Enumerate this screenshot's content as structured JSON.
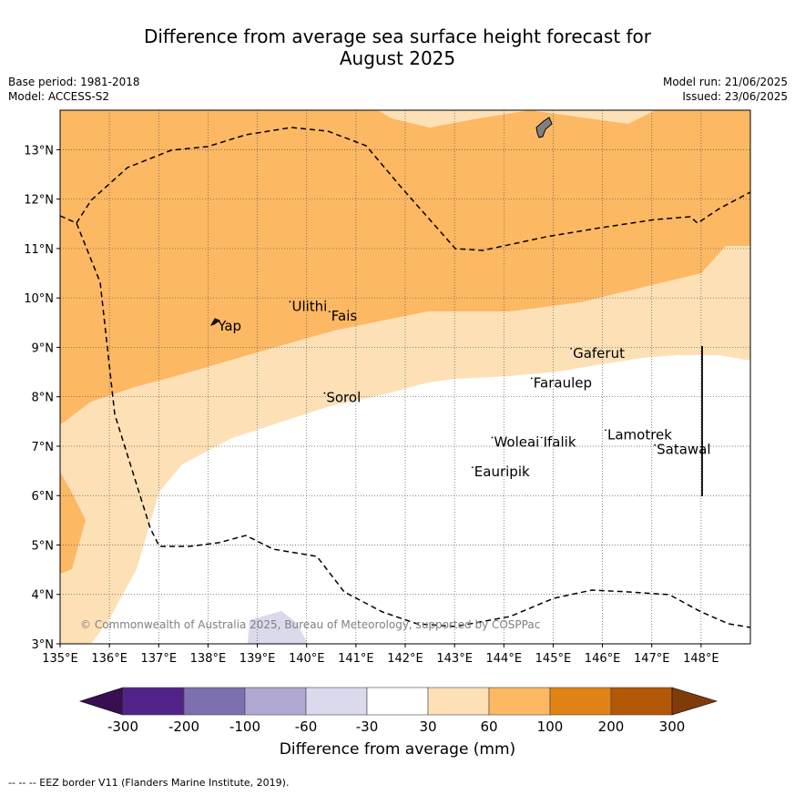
{
  "title_line1": "Difference from average sea surface height forecast for",
  "title_line2": "August 2025",
  "meta": {
    "base_period": "Base period: 1981-2018",
    "model": "Model: ACCESS-S2",
    "model_run": "Model run: 21/06/2025",
    "issued": "Issued: 23/06/2025"
  },
  "map": {
    "lon_range": [
      135,
      149
    ],
    "lat_range": [
      3,
      13.8
    ],
    "lon_ticks": [
      "135°E",
      "136°E",
      "137°E",
      "138°E",
      "139°E",
      "140°E",
      "141°E",
      "142°E",
      "143°E",
      "144°E",
      "145°E",
      "146°E",
      "147°E",
      "148°E"
    ],
    "lat_ticks": [
      "3°N",
      "4°N",
      "5°N",
      "6°N",
      "7°N",
      "8°N",
      "9°N",
      "10°N",
      "11°N",
      "12°N",
      "13°N"
    ],
    "places": [
      {
        "name": "Yap",
        "lon": 138.2,
        "lat": 9.45
      },
      {
        "name": "Ulithi",
        "lon": 139.7,
        "lat": 9.85
      },
      {
        "name": "Fais",
        "lon": 140.5,
        "lat": 9.65
      },
      {
        "name": "Sorol",
        "lon": 140.4,
        "lat": 8.0
      },
      {
        "name": "Gaferut",
        "lon": 145.4,
        "lat": 8.9
      },
      {
        "name": "Faraulep",
        "lon": 144.6,
        "lat": 8.3
      },
      {
        "name": "Woleai",
        "lon": 143.8,
        "lat": 7.1
      },
      {
        "name": "Ifalik",
        "lon": 144.8,
        "lat": 7.1
      },
      {
        "name": "Lamotrek",
        "lon": 146.1,
        "lat": 7.25
      },
      {
        "name": "Satawal",
        "lon": 147.1,
        "lat": 6.95
      },
      {
        "name": "Eauripik",
        "lon": 143.4,
        "lat": 6.5
      }
    ],
    "copyright": "© Commonwealth of Australia 2025, Bureau of Meteorology, supported by COSPPac"
  },
  "colorbar": {
    "labels": [
      "-300",
      "-200",
      "-100",
      "-60",
      "-30",
      "30",
      "60",
      "100",
      "200",
      "300"
    ],
    "colors": [
      "#3a0f52",
      "#51238a",
      "#7e70ae",
      "#b1a9d3",
      "#dadaec",
      "#ffffff",
      "#fee0b6",
      "#fdb863",
      "#e08214",
      "#b35806",
      "#7f3b08"
    ],
    "title": "Difference from average (mm)"
  },
  "footer": "--  --  -- EEZ border V11 (Flanders Marine Institute, 2019)."
}
